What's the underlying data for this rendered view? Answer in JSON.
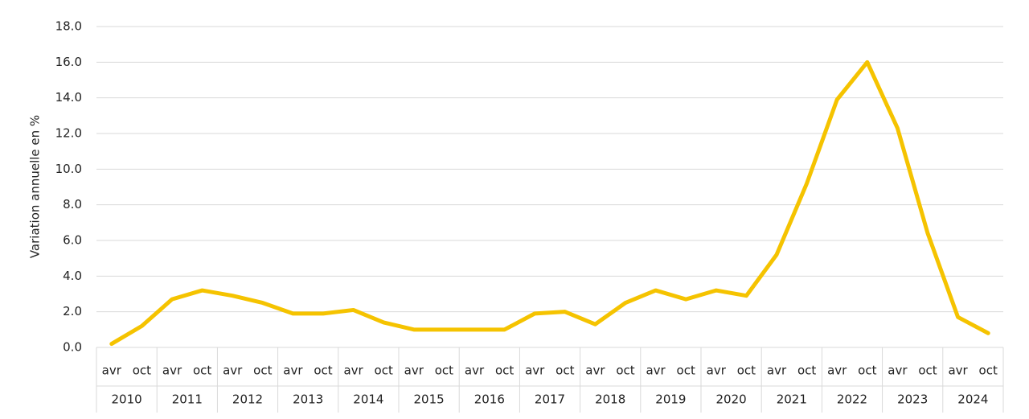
{
  "chart_data": {
    "type": "line",
    "y_label": "Variation annuelle en %",
    "categories": [
      "avr",
      "oct",
      "avr",
      "oct",
      "avr",
      "oct",
      "avr",
      "oct",
      "avr",
      "oct",
      "avr",
      "oct",
      "avr",
      "oct",
      "avr",
      "oct",
      "avr",
      "oct",
      "avr",
      "oct",
      "avr",
      "oct",
      "avr",
      "oct",
      "avr",
      "oct",
      "avr",
      "oct",
      "avr",
      "oct"
    ],
    "groups": [
      "2010",
      "2011",
      "2012",
      "2013",
      "2014",
      "2015",
      "2016",
      "2017",
      "2018",
      "2019",
      "2020",
      "2021",
      "2022",
      "2023",
      "2024"
    ],
    "series": [
      {
        "color": "#f5c300",
        "values": [
          0.2,
          1.2,
          2.7,
          3.2,
          2.9,
          2.5,
          1.9,
          1.9,
          2.1,
          1.4,
          1.0,
          1.0,
          1.0,
          1.0,
          1.9,
          2.0,
          1.3,
          2.5,
          3.2,
          2.7,
          3.2,
          2.9,
          5.2,
          9.2,
          13.9,
          16.0,
          12.3,
          6.4,
          1.7,
          0.8
        ]
      }
    ],
    "ylim": [
      0,
      18
    ],
    "yticks": [
      {
        "value": 0,
        "label": "0.0"
      },
      {
        "value": 2,
        "label": "2.0"
      },
      {
        "value": 4,
        "label": "4.0"
      },
      {
        "value": 6,
        "label": "6.0"
      },
      {
        "value": 8,
        "label": "8.0"
      },
      {
        "value": 10,
        "label": "10.0"
      },
      {
        "value": 12,
        "label": "12.0"
      },
      {
        "value": 14,
        "label": "14.0"
      },
      {
        "value": 16,
        "label": "16.0"
      },
      {
        "value": 18,
        "label": "18.0"
      }
    ],
    "grid": true
  }
}
